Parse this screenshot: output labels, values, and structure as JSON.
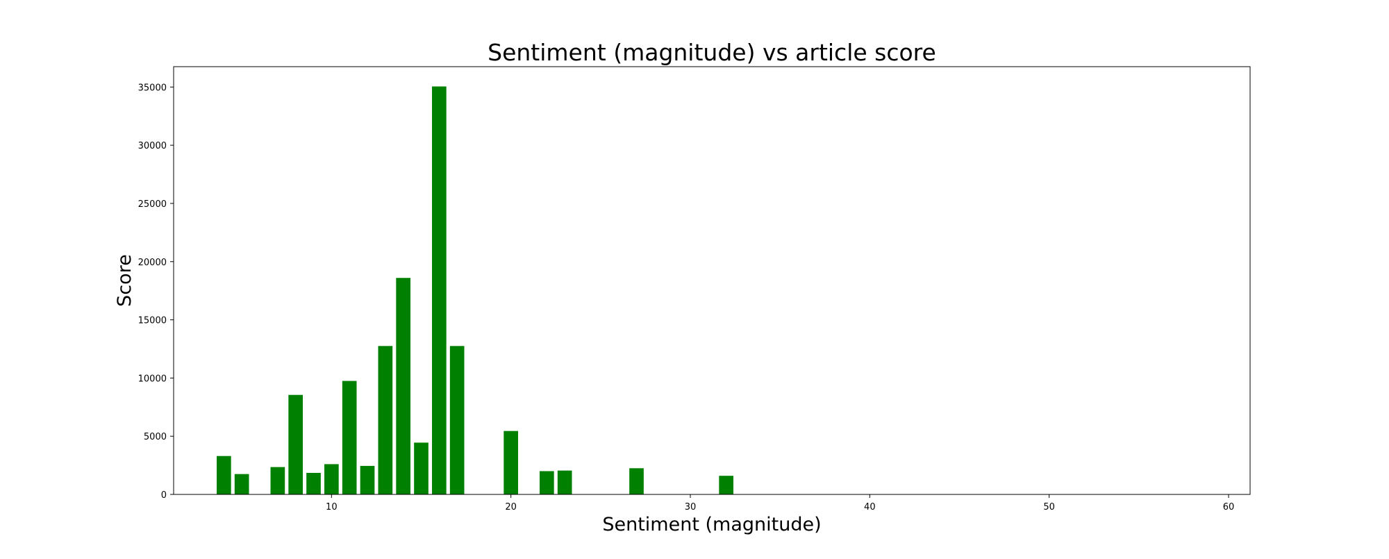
{
  "chart_data": {
    "type": "bar",
    "title": "Sentiment (magnitude) vs article score",
    "xlabel": "Sentiment (magnitude)",
    "ylabel": "Score",
    "xlim": [
      1.2,
      61.2
    ],
    "ylim": [
      0,
      36750
    ],
    "xticks": [
      10,
      20,
      30,
      40,
      50,
      60
    ],
    "yticks": [
      0,
      5000,
      10000,
      15000,
      20000,
      25000,
      30000,
      35000
    ],
    "grid": false,
    "bar_width": 0.8,
    "bar_color": "#008000",
    "x": [
      4,
      5,
      7,
      8,
      9,
      10,
      11,
      12,
      13,
      14,
      15,
      16,
      17,
      20,
      22,
      23,
      27,
      32
    ],
    "values": [
      3300,
      1750,
      2350,
      8550,
      1850,
      2600,
      9750,
      2450,
      12750,
      18600,
      4450,
      35050,
      12750,
      5450,
      2000,
      2050,
      2250,
      1600
    ]
  }
}
